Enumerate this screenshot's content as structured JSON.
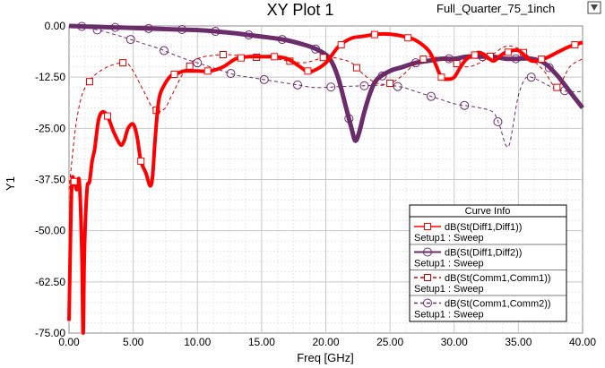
{
  "window": {
    "title": "XY Plot 1",
    "design_name": "Full_Quarter_75_1inch",
    "logo_icon": "ansys-logo-icon"
  },
  "legend": {
    "title": "Curve Info",
    "entries": [
      {
        "line1": "dB(St(Diff1,Diff1))",
        "line2": "Setup1 : Sweep",
        "color": "#ff0000",
        "marker": "square",
        "dashed": false
      },
      {
        "line1": "dB(St(Diff1,Diff2))",
        "line2": "Setup1 : Sweep",
        "color": "#6b2c6b",
        "marker": "circle",
        "dashed": false
      },
      {
        "line1": "dB(St(Comm1,Comm1))",
        "line2": "Setup1 : Sweep",
        "color": "#cc0000",
        "marker": "square",
        "dashed": true
      },
      {
        "line1": "dB(St(Comm1,Comm2))",
        "line2": "Setup1 : Sweep",
        "color": "#6b2c6b",
        "marker": "circle",
        "dashed": true
      }
    ]
  },
  "chart_data": {
    "type": "line",
    "title": "XY Plot 1",
    "xlabel": "Freq [GHz]",
    "ylabel": "Y1",
    "xlim": [
      0,
      40
    ],
    "ylim": [
      -75,
      0
    ],
    "x_ticks": [
      "0.00",
      "5.00",
      "10.00",
      "15.00",
      "20.00",
      "25.00",
      "30.00",
      "35.00",
      "40.00"
    ],
    "y_ticks": [
      "0.00",
      "-12.50",
      "-25.00",
      "-37.50",
      "-50.00",
      "-62.50",
      "-75.00"
    ],
    "grid": true,
    "legend_position": "bottom-right",
    "series": [
      {
        "name": "dB(St(Diff1,Diff1))",
        "x": [
          0,
          0.2,
          0.4,
          0.6,
          0.8,
          1.0,
          1.1,
          1.2,
          1.4,
          1.6,
          1.8,
          2.0,
          2.3,
          2.6,
          3.0,
          3.5,
          4.0,
          4.3,
          4.6,
          5.0,
          5.3,
          5.6,
          6.0,
          6.3,
          6.5,
          6.7,
          7.0,
          7.5,
          8.0,
          8.5,
          9.0,
          10.0,
          11.0,
          12.0,
          13.0,
          14.0,
          15.0,
          16.0,
          17.0,
          18.0,
          18.5,
          19.0,
          20.0,
          21.0,
          22.0,
          23.0,
          24.0,
          25.0,
          26.0,
          27.0,
          28.0,
          28.5,
          29.0,
          29.5,
          30.0,
          30.5,
          31.0,
          32.0,
          33.0,
          33.5,
          34.0,
          35.0,
          36.0,
          37.0,
          38.0,
          39.0,
          40.0
        ],
        "y": [
          -72,
          -40,
          -38,
          -40,
          -38,
          -55,
          -76,
          -55,
          -40,
          -38,
          -33,
          -30,
          -23,
          -21,
          -22,
          -26,
          -29,
          -28,
          -25,
          -24,
          -27,
          -33,
          -36,
          -39,
          -37,
          -28,
          -18,
          -14,
          -12,
          -11.5,
          -11,
          -11,
          -11,
          -10,
          -8,
          -7.5,
          -7.5,
          -7.5,
          -8,
          -10,
          -11,
          -11,
          -9,
          -5,
          -3,
          -2.5,
          -2,
          -2,
          -2.5,
          -3.5,
          -6,
          -9,
          -12.5,
          -13,
          -12.5,
          -10,
          -8,
          -6.5,
          -8.5,
          -7.5,
          -6.5,
          -6,
          -8.5,
          -8,
          -6.5,
          -5,
          -4
        ]
      },
      {
        "name": "dB(St(Diff1,Diff2))",
        "x": [
          0,
          1,
          2,
          3,
          4,
          5,
          6,
          7,
          8,
          9,
          10,
          11,
          12,
          13,
          14,
          15,
          16,
          17,
          18,
          19,
          20,
          20.5,
          21,
          21.5,
          22,
          22.3,
          22.6,
          23,
          23.5,
          24,
          25,
          26,
          27,
          28,
          29,
          30,
          31,
          32,
          33,
          34,
          35,
          36,
          37,
          38,
          39,
          40
        ],
        "y": [
          0,
          -0.1,
          -0.2,
          -0.3,
          -0.4,
          -0.5,
          -0.6,
          -0.7,
          -0.8,
          -0.9,
          -1.0,
          -1.2,
          -1.5,
          -1.8,
          -2.2,
          -2.6,
          -3.0,
          -3.5,
          -4.3,
          -5.3,
          -7,
          -9,
          -13,
          -19,
          -25,
          -28,
          -26,
          -21,
          -16,
          -13,
          -11,
          -10,
          -9,
          -8.5,
          -8,
          -8,
          -7.5,
          -7.5,
          -7.5,
          -8,
          -8,
          -8,
          -9,
          -12,
          -16,
          -20
        ]
      },
      {
        "name": "dB(St(Comm1,Comm1))",
        "x": [
          0,
          0.5,
          1,
          1.5,
          2,
          3,
          4,
          4.5,
          5,
          5.5,
          6,
          6.5,
          7,
          7.5,
          8,
          9,
          10,
          12,
          14,
          16,
          18,
          19,
          20,
          21,
          22,
          23,
          24,
          25,
          26,
          27,
          28,
          29,
          30,
          31,
          32,
          33,
          34,
          35,
          36,
          37,
          38,
          39,
          40
        ],
        "y": [
          -40,
          -25,
          -17,
          -14,
          -12,
          -10,
          -9,
          -9,
          -11,
          -14,
          -17,
          -20,
          -21,
          -20,
          -17,
          -11,
          -8,
          -7,
          -7.5,
          -8,
          -9,
          -8.5,
          -7.5,
          -8,
          -9,
          -12,
          -14,
          -14,
          -12,
          -9,
          -7.5,
          -8,
          -9,
          -10,
          -9,
          -7,
          -5,
          -5.5,
          -8,
          -11,
          -15,
          -10,
          -8
        ]
      },
      {
        "name": "dB(St(Comm1,Comm2))",
        "x": [
          0,
          1,
          2,
          3,
          4,
          5,
          6,
          7,
          8,
          9,
          10,
          11,
          12,
          13,
          14,
          15,
          16,
          17,
          18,
          19,
          20,
          21,
          22,
          23,
          24,
          25,
          26,
          27,
          28,
          29,
          30,
          31,
          32,
          33,
          33.5,
          34,
          34.3,
          34.6,
          35,
          35.5,
          36,
          37,
          38,
          39,
          40
        ],
        "y": [
          0,
          -0.3,
          -0.8,
          -1.6,
          -2.5,
          -3.5,
          -4.5,
          -5.5,
          -6.8,
          -8,
          -9,
          -10,
          -11,
          -12,
          -12.5,
          -13,
          -13.5,
          -14,
          -14.5,
          -15,
          -15,
          -14.8,
          -14.7,
          -14.6,
          -14.5,
          -14.5,
          -15,
          -16,
          -17,
          -18,
          -19,
          -19.5,
          -20,
          -21,
          -24,
          -29,
          -29,
          -24,
          -17,
          -13,
          -12.5,
          -14,
          -15.5,
          -16,
          -16
        ]
      }
    ]
  }
}
